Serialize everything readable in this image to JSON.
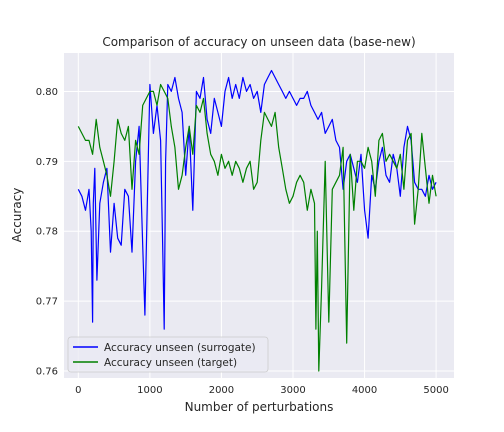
{
  "chart_data": {
    "type": "line",
    "title": "Comparison of accuracy on unseen data (base-new)",
    "xlabel": "Number of perturbations",
    "ylabel": "Accuracy",
    "xlim": [
      -200,
      5250
    ],
    "ylim": [
      0.759,
      0.8055
    ],
    "xticks": [
      0,
      1000,
      2000,
      3000,
      4000,
      5000
    ],
    "yticks": [
      0.76,
      0.77,
      0.78,
      0.79,
      0.8
    ],
    "xtick_labels": [
      "0",
      "1000",
      "2000",
      "3000",
      "4000",
      "5000"
    ],
    "ytick_labels": [
      "0.76",
      "0.77",
      "0.78",
      "0.79",
      "0.80"
    ],
    "grid": true,
    "legend_position": "lower-left",
    "series": [
      {
        "name": "Accuracy unseen (surrogate)",
        "color": "#0000ff",
        "x": [
          0,
          50,
          100,
          150,
          180,
          200,
          210,
          230,
          260,
          300,
          350,
          400,
          450,
          500,
          550,
          600,
          650,
          700,
          750,
          800,
          850,
          900,
          930,
          960,
          1000,
          1050,
          1100,
          1150,
          1180,
          1200,
          1220,
          1250,
          1300,
          1350,
          1400,
          1450,
          1500,
          1550,
          1600,
          1650,
          1700,
          1750,
          1800,
          1850,
          1900,
          1950,
          2000,
          2050,
          2100,
          2150,
          2200,
          2250,
          2300,
          2350,
          2400,
          2450,
          2500,
          2550,
          2600,
          2650,
          2700,
          2750,
          2800,
          2850,
          2900,
          2950,
          3000,
          3050,
          3100,
          3150,
          3200,
          3250,
          3300,
          3350,
          3400,
          3450,
          3500,
          3550,
          3600,
          3650,
          3700,
          3750,
          3800,
          3850,
          3900,
          3950,
          4000,
          4050,
          4100,
          4150,
          4200,
          4250,
          4300,
          4350,
          4400,
          4450,
          4500,
          4550,
          4600,
          4650,
          4700,
          4750,
          4800,
          4850,
          4900,
          4950,
          5000
        ],
        "y": [
          0.786,
          0.785,
          0.783,
          0.786,
          0.78,
          0.767,
          0.784,
          0.789,
          0.773,
          0.784,
          0.787,
          0.789,
          0.777,
          0.784,
          0.779,
          0.778,
          0.786,
          0.785,
          0.777,
          0.79,
          0.795,
          0.778,
          0.768,
          0.782,
          0.801,
          0.794,
          0.798,
          0.793,
          0.777,
          0.766,
          0.79,
          0.801,
          0.8,
          0.802,
          0.799,
          0.797,
          0.788,
          0.795,
          0.783,
          0.8,
          0.799,
          0.802,
          0.796,
          0.794,
          0.799,
          0.797,
          0.795,
          0.8,
          0.802,
          0.799,
          0.801,
          0.799,
          0.802,
          0.8,
          0.801,
          0.799,
          0.8,
          0.797,
          0.801,
          0.802,
          0.803,
          0.802,
          0.801,
          0.8,
          0.799,
          0.8,
          0.799,
          0.798,
          0.799,
          0.799,
          0.8,
          0.798,
          0.797,
          0.796,
          0.797,
          0.794,
          0.795,
          0.796,
          0.793,
          0.792,
          0.786,
          0.79,
          0.791,
          0.789,
          0.787,
          0.791,
          0.783,
          0.779,
          0.788,
          0.786,
          0.79,
          0.792,
          0.788,
          0.787,
          0.791,
          0.789,
          0.785,
          0.792,
          0.795,
          0.793,
          0.787,
          0.786,
          0.786,
          0.785,
          0.788,
          0.786,
          0.787
        ]
      },
      {
        "name": "Accuracy unseen (target)",
        "color": "#008000",
        "x": [
          0,
          50,
          100,
          150,
          200,
          250,
          300,
          350,
          400,
          450,
          500,
          550,
          600,
          650,
          700,
          750,
          800,
          850,
          900,
          950,
          1000,
          1050,
          1100,
          1150,
          1200,
          1250,
          1300,
          1350,
          1400,
          1450,
          1500,
          1550,
          1600,
          1650,
          1700,
          1750,
          1800,
          1850,
          1900,
          1950,
          2000,
          2050,
          2100,
          2150,
          2200,
          2250,
          2300,
          2350,
          2400,
          2450,
          2500,
          2550,
          2600,
          2650,
          2700,
          2750,
          2800,
          2850,
          2900,
          2950,
          3000,
          3050,
          3100,
          3150,
          3200,
          3250,
          3300,
          3320,
          3340,
          3360,
          3400,
          3450,
          3500,
          3550,
          3600,
          3650,
          3700,
          3750,
          3800,
          3850,
          3900,
          3950,
          4000,
          4050,
          4100,
          4150,
          4200,
          4250,
          4300,
          4350,
          4400,
          4450,
          4500,
          4550,
          4600,
          4650,
          4700,
          4750,
          4800,
          4850,
          4900,
          4950,
          5000
        ],
        "y": [
          0.795,
          0.794,
          0.793,
          0.793,
          0.791,
          0.796,
          0.792,
          0.79,
          0.788,
          0.785,
          0.79,
          0.796,
          0.794,
          0.793,
          0.795,
          0.786,
          0.793,
          0.791,
          0.798,
          0.799,
          0.8,
          0.8,
          0.798,
          0.801,
          0.8,
          0.799,
          0.795,
          0.792,
          0.786,
          0.788,
          0.792,
          0.795,
          0.791,
          0.798,
          0.797,
          0.799,
          0.794,
          0.791,
          0.79,
          0.788,
          0.791,
          0.789,
          0.79,
          0.788,
          0.79,
          0.789,
          0.787,
          0.789,
          0.79,
          0.786,
          0.787,
          0.793,
          0.797,
          0.796,
          0.795,
          0.797,
          0.792,
          0.789,
          0.786,
          0.784,
          0.785,
          0.787,
          0.788,
          0.787,
          0.783,
          0.786,
          0.784,
          0.766,
          0.78,
          0.76,
          0.772,
          0.79,
          0.767,
          0.786,
          0.787,
          0.788,
          0.792,
          0.764,
          0.791,
          0.783,
          0.79,
          0.79,
          0.789,
          0.792,
          0.79,
          0.785,
          0.793,
          0.794,
          0.79,
          0.791,
          0.79,
          0.789,
          0.791,
          0.786,
          0.793,
          0.794,
          0.781,
          0.786,
          0.794,
          0.789,
          0.784,
          0.788,
          0.785
        ]
      }
    ]
  }
}
